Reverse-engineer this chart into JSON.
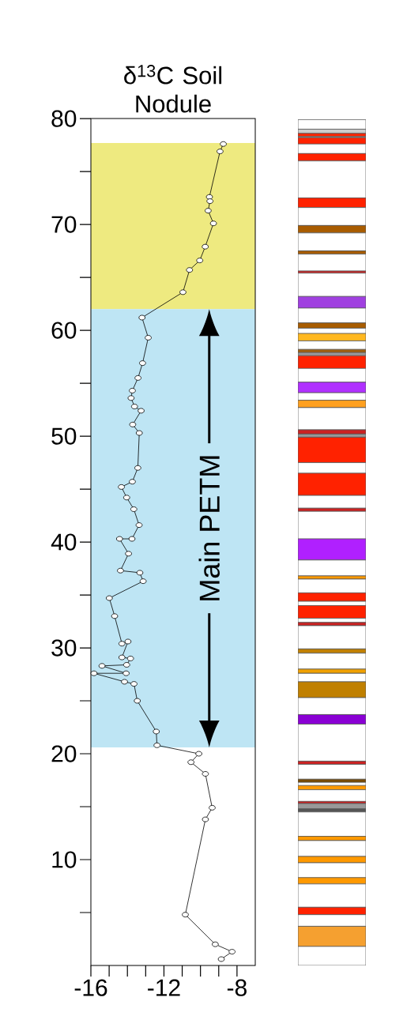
{
  "chart_data": [
    {
      "type": "line",
      "title": "δ$^{13}$C Soil Nodule",
      "series": [
        {
          "color": "#000000",
          "marker": "circle",
          "line_style": "solid",
          "x": [
            -8.75,
            -8.93,
            -9.51,
            -9.48,
            -9.58,
            -9.29,
            -9.74,
            -10.04,
            -10.6,
            -10.96,
            -13.2,
            -12.86,
            -13.17,
            -13.42,
            -13.73,
            -13.8,
            -13.61,
            -13.25,
            -13.71,
            -13.35,
            -13.43,
            -13.73,
            -14.33,
            -14.04,
            -13.65,
            -13.36,
            -13.75,
            -14.43,
            -13.94,
            -14.38,
            -13.32,
            -13.14,
            -14.99,
            -14.7,
            -14.3,
            -13.97,
            -14.3,
            -13.83,
            -14.04,
            -15.39,
            -14.07,
            -15.83,
            -14.16,
            -13.64,
            -13.46,
            -12.42,
            -12.38,
            -10.09,
            -10.52,
            -9.73,
            -9.36,
            -9.73,
            -10.83,
            -9.19,
            -8.27,
            -8.86
          ],
          "values": [
            77.6,
            76.9,
            72.6,
            72.2,
            71.3,
            70.1,
            67.9,
            66.6,
            65.7,
            63.6,
            61.2,
            59.3,
            56.9,
            55.5,
            54.3,
            53.6,
            52.8,
            52.4,
            51.1,
            50.3,
            47.0,
            45.7,
            45.2,
            44.2,
            43.1,
            41.6,
            40.3,
            40.3,
            38.9,
            37.3,
            37.1,
            36.3,
            34.7,
            33.0,
            30.4,
            30.6,
            29.1,
            29.0,
            28.4,
            28.3,
            27.6,
            27.6,
            26.8,
            26.6,
            25.0,
            22.1,
            20.8,
            20.0,
            19.2,
            18.1,
            14.9,
            13.8,
            4.8,
            2.0,
            1.3,
            0.6
          ]
        }
      ],
      "xlim": [
        -16,
        -7
      ],
      "xticks": [
        -16,
        {
          "value": -15,
          "label": null
        },
        {
          "value": -14,
          "label": null
        },
        {
          "value": -13,
          "label": null
        },
        -12,
        {
          "value": -11,
          "label": null
        },
        {
          "value": -10,
          "label": null
        },
        {
          "value": -9,
          "label": null
        },
        -8
      ],
      "ylim": [
        0,
        80
      ],
      "yticks": [
        {
          "value": 5,
          "label": null
        },
        10,
        {
          "value": 15,
          "label": null
        },
        20,
        {
          "value": 25,
          "label": null
        },
        30,
        {
          "value": 35,
          "label": null
        },
        40,
        {
          "value": 45,
          "label": null
        },
        50,
        {
          "value": 55,
          "label": null
        },
        60,
        {
          "value": 65,
          "label": null
        },
        70,
        {
          "value": 75,
          "label": null
        },
        80
      ],
      "bands": [
        {
          "axis": "y",
          "from": 62,
          "to": 77.7,
          "color": "#eeea80"
        },
        {
          "axis": "y",
          "from": 20.6,
          "to": 62,
          "color": "#bee5f4"
        }
      ],
      "annotations": [
        "Main PETM"
      ]
    },
    {
      "type": "bar",
      "stacked": true,
      "categories": [
        null
      ],
      "ylim": [
        0,
        80
      ],
      "tick_labels": false,
      "series": [
        {
          "color": "#ffffff",
          "values": [
            1.8
          ]
        },
        {
          "color": "#f5a030",
          "values": [
            1.9
          ]
        },
        {
          "color": "#ffffff",
          "values": [
            1.1
          ]
        },
        {
          "color": "#ff2200",
          "values": [
            0.7
          ]
        },
        {
          "color": "#ffffff",
          "values": [
            2.2
          ]
        },
        {
          "color": "#ff9900",
          "values": [
            0.6
          ]
        },
        {
          "color": "#ffffff",
          "values": [
            1.4
          ]
        },
        {
          "color": "#ff9900",
          "values": [
            0.6
          ]
        },
        {
          "color": "#ffffff",
          "values": [
            1.5
          ]
        },
        {
          "color": "#ff9900",
          "values": [
            0.4
          ]
        },
        {
          "color": "#ffffff",
          "values": [
            2.3
          ]
        },
        {
          "color": "#555555",
          "values": [
            0.3
          ]
        },
        {
          "color": "#999999",
          "values": [
            0.5
          ]
        },
        {
          "color": "#cc2222",
          "values": [
            0.2
          ]
        },
        {
          "color": "#ffffff",
          "values": [
            1.1
          ]
        },
        {
          "color": "#ff9900",
          "values": [
            0.4
          ]
        },
        {
          "color": "#ffffff",
          "values": [
            0.3
          ]
        },
        {
          "color": "#7a4a00",
          "values": [
            0.3
          ]
        },
        {
          "color": "#ffffff",
          "values": [
            1.4
          ]
        },
        {
          "color": "#cc2222",
          "values": [
            0.3
          ]
        },
        {
          "color": "#ffffff",
          "values": [
            3.5
          ]
        },
        {
          "color": "#8a00d4",
          "values": [
            0.9
          ]
        },
        {
          "color": "#ffffff",
          "values": [
            1.6
          ]
        },
        {
          "color": "#c08000",
          "values": [
            1.5
          ]
        },
        {
          "color": "#ffffff",
          "values": [
            0.8
          ]
        },
        {
          "color": "#f0a000",
          "values": [
            0.4
          ]
        },
        {
          "color": "#ffffff",
          "values": [
            1.5
          ]
        },
        {
          "color": "#c08000",
          "values": [
            0.4
          ]
        },
        {
          "color": "#ffffff",
          "values": [
            2.2
          ]
        },
        {
          "color": "#cc2222",
          "values": [
            0.3
          ]
        },
        {
          "color": "#ffffff",
          "values": [
            0.4
          ]
        },
        {
          "color": "#ff2200",
          "values": [
            1.2
          ]
        },
        {
          "color": "#ffffff",
          "values": [
            0.4
          ]
        },
        {
          "color": "#ff2200",
          "values": [
            0.8
          ]
        },
        {
          "color": "#ffffff",
          "values": [
            1.3
          ]
        },
        {
          "color": "#ff9900",
          "values": [
            0.3
          ]
        },
        {
          "color": "#ffffff",
          "values": [
            1.5
          ]
        },
        {
          "color": "#b020ff",
          "values": [
            2.0
          ]
        },
        {
          "color": "#ffffff",
          "values": [
            2.6
          ]
        },
        {
          "color": "#cc2222",
          "values": [
            0.3
          ]
        },
        {
          "color": "#ffffff",
          "values": [
            1.2
          ]
        },
        {
          "color": "#ff2200",
          "values": [
            2.1
          ]
        },
        {
          "color": "#ffffff",
          "values": [
            1.0
          ]
        },
        {
          "color": "#ff2200",
          "values": [
            2.4
          ]
        },
        {
          "color": "#999999",
          "values": [
            0.3
          ]
        },
        {
          "color": "#cc2222",
          "values": [
            0.4
          ]
        },
        {
          "color": "#ffffff",
          "values": [
            2.1
          ]
        },
        {
          "color": "#ffa020",
          "values": [
            0.7
          ]
        },
        {
          "color": "#ffffff",
          "values": [
            0.7
          ]
        },
        {
          "color": "#b030ff",
          "values": [
            1.0
          ]
        },
        {
          "color": "#ffffff",
          "values": [
            1.3
          ]
        },
        {
          "color": "#ff2200",
          "values": [
            1.2
          ]
        },
        {
          "color": "#999999",
          "values": [
            0.3
          ]
        },
        {
          "color": "#a06010",
          "values": [
            0.3
          ]
        },
        {
          "color": "#ffffff",
          "values": [
            0.8
          ]
        },
        {
          "color": "#ffb820",
          "values": [
            0.7
          ]
        },
        {
          "color": "#ffffff",
          "values": [
            0.5
          ]
        },
        {
          "color": "#a85c00",
          "values": [
            0.5
          ]
        },
        {
          "color": "#ffffff",
          "values": [
            1.4
          ]
        },
        {
          "color": "#a040e0",
          "values": [
            1.1
          ]
        },
        {
          "color": "#ffffff",
          "values": [
            2.2
          ]
        },
        {
          "color": "#cc2222",
          "values": [
            0.2
          ]
        },
        {
          "color": "#ffffff",
          "values": [
            1.6
          ]
        },
        {
          "color": "#a85c00",
          "values": [
            0.3
          ]
        },
        {
          "color": "#ffffff",
          "values": [
            1.7
          ]
        },
        {
          "color": "#a85c00",
          "values": [
            0.7
          ]
        },
        {
          "color": "#ffffff",
          "values": [
            1.7
          ]
        },
        {
          "color": "#ff2200",
          "values": [
            0.9
          ]
        },
        {
          "color": "#ffffff",
          "values": [
            3.5
          ]
        },
        {
          "color": "#ff2200",
          "values": [
            0.7
          ]
        },
        {
          "color": "#ffffff",
          "values": [
            0.9
          ]
        },
        {
          "color": "#ff2200",
          "values": [
            0.6
          ]
        },
        {
          "color": "#999999",
          "values": [
            0.1
          ]
        },
        {
          "color": "#ff2200",
          "values": [
            0.3
          ]
        },
        {
          "color": "#cccccc",
          "values": [
            0.4
          ]
        },
        {
          "color": "#ffffff",
          "values": [
            0.9
          ]
        }
      ]
    }
  ]
}
